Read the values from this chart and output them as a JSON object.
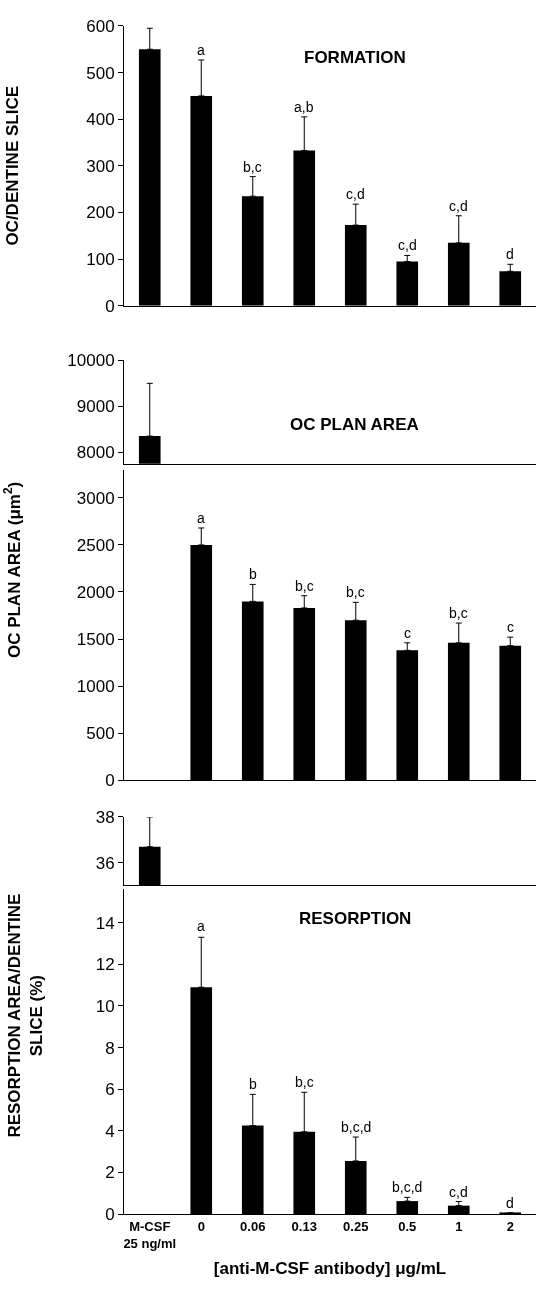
{
  "chart_data": [
    {
      "type": "bar",
      "title": "FORMATION",
      "ylabel": "OC/DENTINE SLICE",
      "categories": [
        null,
        null,
        null,
        null,
        null,
        null,
        null,
        null
      ],
      "series": [
        {
          "color": "#000000",
          "values": [
            550,
            450,
            235,
            333,
            173,
            95,
            135,
            74
          ],
          "errors": [
            [
              550,
              595
            ],
            [
              450,
              527
            ],
            [
              235,
              277
            ],
            [
              333,
              405
            ],
            [
              173,
              218
            ],
            [
              95,
              108
            ],
            [
              135,
              193
            ],
            [
              74,
              89
            ]
          ],
          "value_labels": [
            null,
            "a",
            "b,c",
            "a,b",
            "c,d",
            "c,d",
            "c,d",
            "d"
          ]
        }
      ],
      "ylim": [
        0,
        600
      ],
      "yticks": [
        0,
        100,
        200,
        300,
        400,
        500,
        600
      ],
      "tick_labels": "y"
    },
    {
      "type": "bar",
      "title": "OC PLAN AREA",
      "categories": [
        null,
        null,
        null,
        null,
        null,
        null,
        null,
        null
      ],
      "series": [
        {
          "color": "#000000",
          "values": [
            8350,
            null,
            null,
            null,
            null,
            null,
            null,
            null
          ],
          "errors": [
            [
              8350,
              9500
            ],
            null,
            null,
            null,
            null,
            null,
            null,
            null
          ]
        }
      ],
      "ylim": [
        7750,
        10000
      ],
      "yticks": [
        8000,
        9000,
        10000
      ],
      "tick_labels": "y"
    },
    {
      "type": "bar",
      "ylabel": "OC PLAN AREA (μm$^{2}$)",
      "categories": [
        null,
        null,
        null,
        null,
        null,
        null,
        null,
        null
      ],
      "series": [
        {
          "color": "#000000",
          "values": [
            null,
            2500,
            1900,
            1830,
            1700,
            1380,
            1460,
            1430
          ],
          "errors": [
            null,
            [
              2500,
              2680
            ],
            [
              1900,
              2080
            ],
            [
              1830,
              1960
            ],
            [
              1700,
              1890
            ],
            [
              1380,
              1460
            ],
            [
              1460,
              1670
            ],
            [
              1430,
              1520
            ]
          ],
          "value_labels": [
            null,
            "a",
            "b",
            "b,c",
            "b,c",
            "c",
            "b,c",
            "c"
          ]
        }
      ],
      "ylim": [
        0,
        3300
      ],
      "yticks": [
        0,
        500,
        1000,
        1500,
        2000,
        2500,
        3000
      ],
      "tick_labels": "y"
    },
    {
      "type": "bar",
      "categories": [
        null,
        null,
        null,
        null,
        null,
        null,
        null,
        null
      ],
      "series": [
        {
          "color": "#000000",
          "values": [
            36.7,
            null,
            null,
            null,
            null,
            null,
            null,
            null
          ],
          "errors": [
            [
              36.7,
              38
            ],
            null,
            null,
            null,
            null,
            null,
            null,
            null
          ]
        }
      ],
      "ylim": [
        35,
        38
      ],
      "yticks": [
        36,
        38
      ],
      "tick_labels": "y"
    },
    {
      "type": "bar",
      "title": "RESORPTION",
      "ylabel": "RESORPTION AREA/DENTINE SLICE (%)",
      "xlabel": "[anti-M-CSF antibody] μg/mL",
      "categories": [
        "M-CSF 25 ng/ml",
        "0",
        "0.06",
        "0.13",
        "0.25",
        "0.5",
        "1",
        "2"
      ],
      "series": [
        {
          "color": "#000000",
          "values": [
            null,
            10.9,
            4.25,
            3.95,
            2.55,
            0.62,
            0.4,
            0.05
          ],
          "errors": [
            null,
            [
              10.9,
              13.3
            ],
            [
              4.25,
              5.75
            ],
            [
              3.95,
              5.85
            ],
            [
              2.55,
              3.7
            ],
            [
              0.62,
              0.8
            ],
            [
              0.4,
              0.6
            ],
            null
          ],
          "value_labels": [
            null,
            null,
            "b",
            "b,c",
            "b,c,d",
            "b,c,d",
            "c,d",
            "d"
          ]
        }
      ],
      "ylim": [
        0,
        15.6
      ],
      "yticks": [
        0,
        2,
        4,
        6,
        8,
        10,
        12,
        14
      ],
      "annotations": [
        {
          "text": "a",
          "x": "0",
          "y": 13.3
        }
      ]
    }
  ]
}
